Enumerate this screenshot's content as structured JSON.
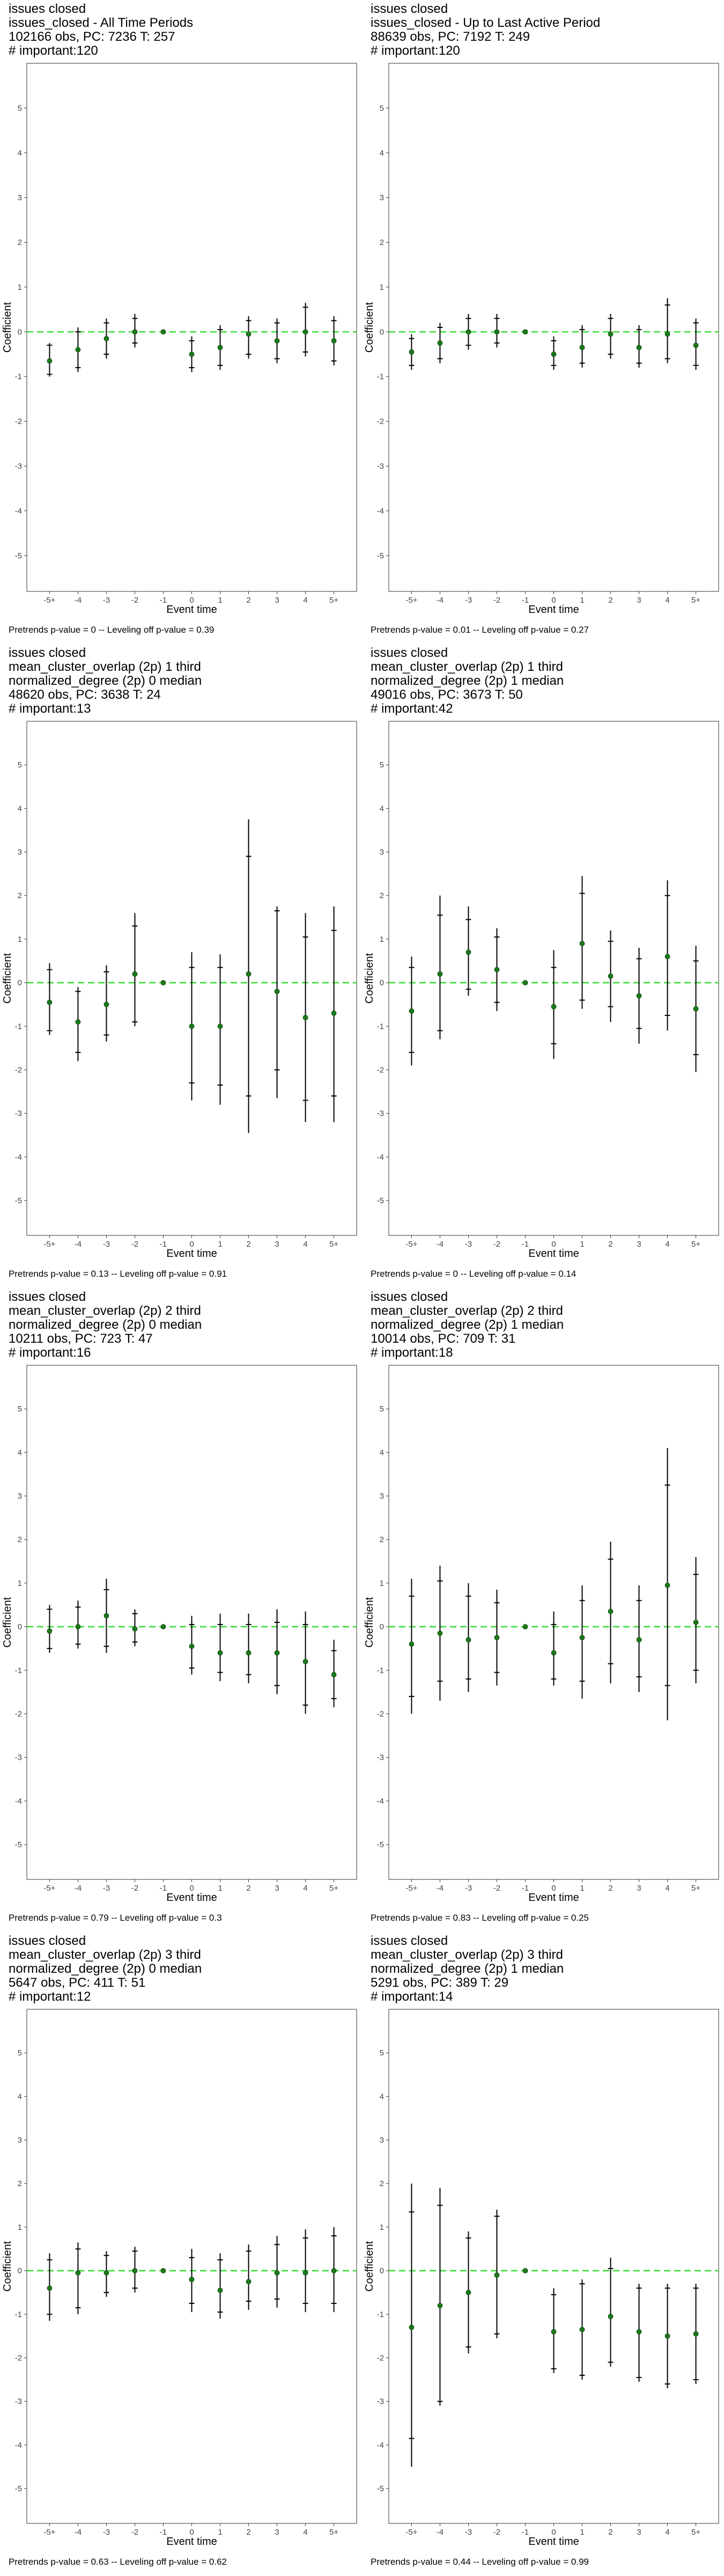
{
  "axis_common": {
    "xlabel": "Event time",
    "ylabel": "Coefficient",
    "x_ticks": [
      "-5+",
      "-4",
      "-3",
      "-2",
      "-1",
      "0",
      "1",
      "2",
      "3",
      "4",
      "5+"
    ],
    "y_ticks": [
      -5,
      -4,
      -3,
      -2,
      -1,
      0,
      1,
      2,
      3,
      4,
      5
    ],
    "ylim": [
      -5.8,
      6.0
    ],
    "reference_line": 0,
    "colors": {
      "point": "#1a7a1a",
      "zero_line": "#33dd33",
      "whisker": "#000000",
      "frame": "#555555"
    }
  },
  "chart_data": [
    {
      "type": "scatter",
      "title_lines": [
        "issues closed",
        "issues_closed - All Time Periods",
        "102166 obs, PC: 7236 T: 257",
        "# important:120"
      ],
      "footnote": "Pretrends p-value = 0 -- Leveling off p-value = 0.39",
      "x": [
        "-5+",
        "-4",
        "-3",
        "-2",
        "-1",
        "0",
        "1",
        "2",
        "3",
        "4",
        "5+"
      ],
      "y": [
        -0.65,
        -0.4,
        -0.15,
        0.0,
        0.0,
        -0.5,
        -0.35,
        -0.05,
        -0.2,
        0.0,
        -0.2
      ],
      "ci95": [
        [
          -1.0,
          -0.25
        ],
        [
          -0.9,
          0.1
        ],
        [
          -0.6,
          0.3
        ],
        [
          -0.35,
          0.4
        ],
        [
          0.0,
          0.0
        ],
        [
          -0.9,
          -0.1
        ],
        [
          -0.85,
          0.15
        ],
        [
          -0.6,
          0.35
        ],
        [
          -0.7,
          0.3
        ],
        [
          -0.55,
          0.65
        ],
        [
          -0.75,
          0.35
        ]
      ],
      "ci90": [
        [
          -0.95,
          -0.3
        ],
        [
          -0.8,
          0.0
        ],
        [
          -0.5,
          0.2
        ],
        [
          -0.25,
          0.3
        ],
        [
          0.0,
          0.0
        ],
        [
          -0.8,
          -0.2
        ],
        [
          -0.75,
          0.05
        ],
        [
          -0.5,
          0.25
        ],
        [
          -0.6,
          0.2
        ],
        [
          -0.45,
          0.55
        ],
        [
          -0.65,
          0.25
        ]
      ]
    },
    {
      "type": "scatter",
      "title_lines": [
        "issues closed",
        "issues_closed - Up to Last Active Period",
        "88639 obs, PC: 7192 T: 249",
        "# important:120"
      ],
      "footnote": "Pretrends p-value = 0.01 -- Leveling off p-value = 0.27",
      "x": [
        "-5+",
        "-4",
        "-3",
        "-2",
        "-1",
        "0",
        "1",
        "2",
        "3",
        "4",
        "5+"
      ],
      "y": [
        -0.45,
        -0.25,
        0.0,
        0.0,
        0.0,
        -0.5,
        -0.35,
        -0.05,
        -0.35,
        -0.05,
        -0.3
      ],
      "ci95": [
        [
          -0.85,
          -0.05
        ],
        [
          -0.7,
          0.2
        ],
        [
          -0.4,
          0.4
        ],
        [
          -0.35,
          0.4
        ],
        [
          0.0,
          0.0
        ],
        [
          -0.85,
          -0.1
        ],
        [
          -0.8,
          0.15
        ],
        [
          -0.6,
          0.4
        ],
        [
          -0.8,
          0.15
        ],
        [
          -0.7,
          0.75
        ],
        [
          -0.85,
          0.3
        ]
      ],
      "ci90": [
        [
          -0.75,
          -0.15
        ],
        [
          -0.6,
          0.1
        ],
        [
          -0.3,
          0.3
        ],
        [
          -0.25,
          0.3
        ],
        [
          0.0,
          0.0
        ],
        [
          -0.75,
          -0.2
        ],
        [
          -0.7,
          0.05
        ],
        [
          -0.5,
          0.3
        ],
        [
          -0.7,
          0.05
        ],
        [
          -0.6,
          0.6
        ],
        [
          -0.75,
          0.2
        ]
      ]
    },
    {
      "type": "scatter",
      "title_lines": [
        "issues closed",
        "mean_cluster_overlap (2p) 1 third",
        "normalized_degree (2p) 0 median",
        "48620 obs, PC: 3638 T: 24",
        "# important:13"
      ],
      "footnote": "Pretrends p-value = 0.13 -- Leveling off p-value = 0.91",
      "x": [
        "-5+",
        "-4",
        "-3",
        "-2",
        "-1",
        "0",
        "1",
        "2",
        "3",
        "4",
        "5+"
      ],
      "y": [
        -0.45,
        -0.9,
        -0.5,
        0.2,
        0.0,
        -1.0,
        -1.0,
        0.2,
        -0.2,
        -0.8,
        -0.7
      ],
      "ci95": [
        [
          -1.2,
          0.45
        ],
        [
          -1.8,
          -0.1
        ],
        [
          -1.35,
          0.4
        ],
        [
          -1.0,
          1.6
        ],
        [
          0.0,
          0.0
        ],
        [
          -2.7,
          0.7
        ],
        [
          -2.8,
          0.65
        ],
        [
          -3.45,
          3.75
        ],
        [
          -2.65,
          1.75
        ],
        [
          -3.2,
          1.6
        ],
        [
          -3.2,
          1.75
        ]
      ],
      "ci90": [
        [
          -1.1,
          0.3
        ],
        [
          -1.6,
          -0.2
        ],
        [
          -1.2,
          0.25
        ],
        [
          -0.9,
          1.3
        ],
        [
          0.0,
          0.0
        ],
        [
          -2.3,
          0.35
        ],
        [
          -2.35,
          0.35
        ],
        [
          -2.6,
          2.9
        ],
        [
          -2.0,
          1.65
        ],
        [
          -2.7,
          1.05
        ],
        [
          -2.6,
          1.2
        ]
      ]
    },
    {
      "type": "scatter",
      "title_lines": [
        "issues closed",
        "mean_cluster_overlap (2p) 1 third",
        "normalized_degree (2p) 1 median",
        "49016 obs, PC: 3673 T: 50",
        "# important:42"
      ],
      "footnote": "Pretrends p-value = 0 -- Leveling off p-value = 0.14",
      "x": [
        "-5+",
        "-4",
        "-3",
        "-2",
        "-1",
        "0",
        "1",
        "2",
        "3",
        "4",
        "5+"
      ],
      "y": [
        -0.65,
        0.2,
        0.7,
        0.3,
        0.0,
        -0.55,
        0.9,
        0.15,
        -0.3,
        0.6,
        -0.6
      ],
      "ci95": [
        [
          -1.9,
          0.6
        ],
        [
          -1.3,
          2.0
        ],
        [
          -0.3,
          1.75
        ],
        [
          -0.65,
          1.25
        ],
        [
          0.0,
          0.0
        ],
        [
          -1.75,
          0.75
        ],
        [
          -0.6,
          2.45
        ],
        [
          -0.9,
          1.2
        ],
        [
          -1.4,
          0.8
        ],
        [
          -1.1,
          2.35
        ],
        [
          -2.05,
          0.85
        ]
      ],
      "ci90": [
        [
          -1.6,
          0.35
        ],
        [
          -1.1,
          1.55
        ],
        [
          -0.15,
          1.45
        ],
        [
          -0.45,
          1.05
        ],
        [
          0.0,
          0.0
        ],
        [
          -1.4,
          0.35
        ],
        [
          -0.4,
          2.05
        ],
        [
          -0.55,
          0.95
        ],
        [
          -1.05,
          0.55
        ],
        [
          -0.75,
          2.0
        ],
        [
          -1.65,
          0.5
        ]
      ]
    },
    {
      "type": "scatter",
      "title_lines": [
        "issues closed",
        "mean_cluster_overlap (2p) 2 third",
        "normalized_degree (2p) 0 median",
        "10211 obs, PC: 723 T: 47",
        "# important:16"
      ],
      "footnote": "Pretrends p-value = 0.79 -- Leveling off p-value = 0.3",
      "x": [
        "-5+",
        "-4",
        "-3",
        "-2",
        "-1",
        "0",
        "1",
        "2",
        "3",
        "4",
        "5+"
      ],
      "y": [
        -0.1,
        0.0,
        0.25,
        -0.05,
        0.0,
        -0.45,
        -0.6,
        -0.6,
        -0.6,
        -0.8,
        -1.1
      ],
      "ci95": [
        [
          -0.6,
          0.5
        ],
        [
          -0.5,
          0.6
        ],
        [
          -0.6,
          1.1
        ],
        [
          -0.45,
          0.4
        ],
        [
          0.0,
          0.0
        ],
        [
          -1.1,
          0.25
        ],
        [
          -1.25,
          0.3
        ],
        [
          -1.3,
          0.3
        ],
        [
          -1.55,
          0.4
        ],
        [
          -2.0,
          0.35
        ],
        [
          -1.85,
          -0.3
        ]
      ],
      "ci90": [
        [
          -0.5,
          0.4
        ],
        [
          -0.4,
          0.45
        ],
        [
          -0.45,
          0.85
        ],
        [
          -0.35,
          0.3
        ],
        [
          0.0,
          0.0
        ],
        [
          -0.95,
          0.05
        ],
        [
          -1.05,
          0.05
        ],
        [
          -1.1,
          0.05
        ],
        [
          -1.35,
          0.1
        ],
        [
          -1.8,
          0.05
        ],
        [
          -1.65,
          -0.55
        ]
      ]
    },
    {
      "type": "scatter",
      "title_lines": [
        "issues closed",
        "mean_cluster_overlap (2p) 2 third",
        "normalized_degree (2p) 1 median",
        "10014 obs, PC: 709 T: 31",
        "# important:18"
      ],
      "footnote": "Pretrends p-value = 0.83 -- Leveling off p-value = 0.25",
      "x": [
        "-5+",
        "-4",
        "-3",
        "-2",
        "-1",
        "0",
        "1",
        "2",
        "3",
        "4",
        "5+"
      ],
      "y": [
        -0.4,
        -0.15,
        -0.3,
        -0.25,
        0.0,
        -0.6,
        -0.25,
        0.35,
        -0.3,
        0.95,
        0.1
      ],
      "ci95": [
        [
          -2.0,
          1.1
        ],
        [
          -1.7,
          1.4
        ],
        [
          -1.5,
          1.0
        ],
        [
          -1.35,
          0.85
        ],
        [
          0.0,
          0.0
        ],
        [
          -1.35,
          0.35
        ],
        [
          -1.65,
          0.95
        ],
        [
          -1.3,
          1.95
        ],
        [
          -1.5,
          0.95
        ],
        [
          -2.15,
          4.1
        ],
        [
          -1.3,
          1.6
        ]
      ],
      "ci90": [
        [
          -1.6,
          0.7
        ],
        [
          -1.25,
          1.05
        ],
        [
          -1.2,
          0.7
        ],
        [
          -1.05,
          0.55
        ],
        [
          0.0,
          0.0
        ],
        [
          -1.2,
          0.05
        ],
        [
          -1.25,
          0.6
        ],
        [
          -0.85,
          1.55
        ],
        [
          -1.15,
          0.6
        ],
        [
          -1.35,
          3.25
        ],
        [
          -1.0,
          1.2
        ]
      ]
    },
    {
      "type": "scatter",
      "title_lines": [
        "issues closed",
        "mean_cluster_overlap (2p) 3 third",
        "normalized_degree (2p) 0 median",
        "5647 obs, PC: 411 T: 51",
        "# important:12"
      ],
      "footnote": "Pretrends p-value = 0.63 -- Leveling off p-value = 0.62",
      "x": [
        "-5+",
        "-4",
        "-3",
        "-2",
        "-1",
        "0",
        "1",
        "2",
        "3",
        "4",
        "5+"
      ],
      "y": [
        -0.4,
        -0.05,
        -0.05,
        0.0,
        0.0,
        -0.2,
        -0.45,
        -0.25,
        -0.05,
        -0.05,
        0.0
      ],
      "ci95": [
        [
          -1.15,
          0.4
        ],
        [
          -1.0,
          0.65
        ],
        [
          -0.6,
          0.45
        ],
        [
          -0.5,
          0.55
        ],
        [
          0.0,
          0.0
        ],
        [
          -0.95,
          0.5
        ],
        [
          -1.1,
          0.4
        ],
        [
          -0.9,
          0.6
        ],
        [
          -0.85,
          0.8
        ],
        [
          -0.95,
          0.95
        ],
        [
          -0.95,
          1.0
        ]
      ],
      "ci90": [
        [
          -1.0,
          0.25
        ],
        [
          -0.85,
          0.5
        ],
        [
          -0.5,
          0.35
        ],
        [
          -0.4,
          0.45
        ],
        [
          0.0,
          0.0
        ],
        [
          -0.75,
          0.3
        ],
        [
          -0.95,
          0.25
        ],
        [
          -0.7,
          0.45
        ],
        [
          -0.65,
          0.6
        ],
        [
          -0.75,
          0.75
        ],
        [
          -0.75,
          0.8
        ]
      ]
    },
    {
      "type": "scatter",
      "title_lines": [
        "issues closed",
        "mean_cluster_overlap (2p) 3 third",
        "normalized_degree (2p) 1 median",
        "5291 obs, PC: 389 T: 29",
        "# important:14"
      ],
      "footnote": "Pretrends p-value = 0.44 -- Leveling off p-value = 0.99",
      "x": [
        "-5+",
        "-4",
        "-3",
        "-2",
        "-1",
        "0",
        "1",
        "2",
        "3",
        "4",
        "5+"
      ],
      "y": [
        -1.3,
        -0.8,
        -0.5,
        -0.1,
        0.0,
        -1.4,
        -1.35,
        -1.05,
        -1.4,
        -1.5,
        -1.45
      ],
      "ci95": [
        [
          -4.5,
          2.0
        ],
        [
          -3.1,
          1.9
        ],
        [
          -1.9,
          0.9
        ],
        [
          -1.55,
          1.4
        ],
        [
          0.0,
          0.0
        ],
        [
          -2.35,
          -0.4
        ],
        [
          -2.5,
          -0.2
        ],
        [
          -2.2,
          0.3
        ],
        [
          -2.55,
          -0.3
        ],
        [
          -2.7,
          -0.3
        ],
        [
          -2.6,
          -0.3
        ]
      ],
      "ci90": [
        [
          -3.85,
          1.35
        ],
        [
          -3.0,
          1.5
        ],
        [
          -1.75,
          0.75
        ],
        [
          -1.45,
          1.25
        ],
        [
          0.0,
          0.0
        ],
        [
          -2.25,
          -0.55
        ],
        [
          -2.4,
          -0.3
        ],
        [
          -2.1,
          0.05
        ],
        [
          -2.45,
          -0.4
        ],
        [
          -2.6,
          -0.4
        ],
        [
          -2.5,
          -0.4
        ]
      ]
    }
  ]
}
